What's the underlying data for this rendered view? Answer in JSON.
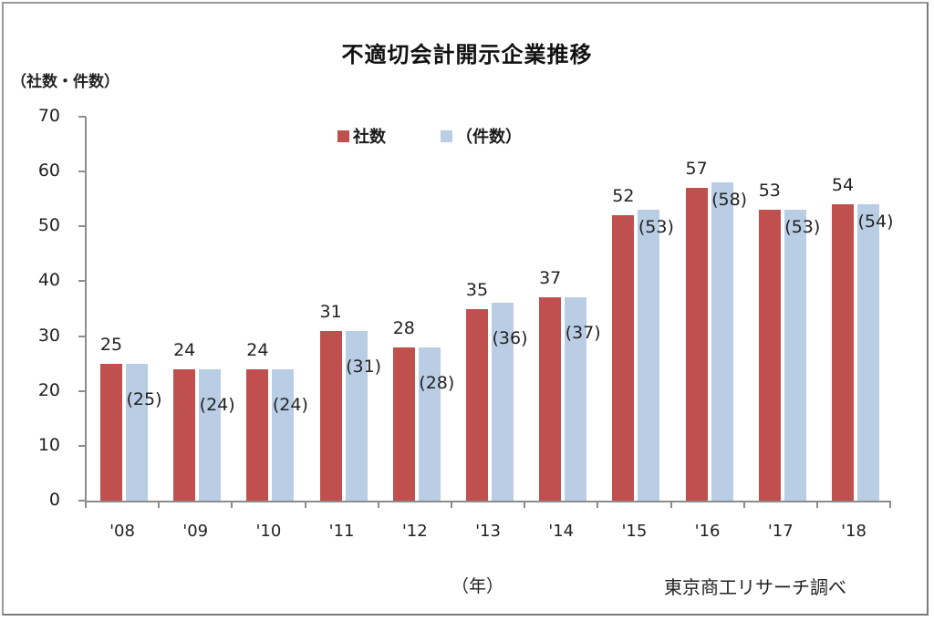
{
  "chart_data": {
    "type": "bar",
    "title": "不適切会計開示企業推移",
    "xlabel": "（年）",
    "ylabel": "（社数・件数）",
    "ylim": [
      0,
      70
    ],
    "yticks": [
      0,
      10,
      20,
      30,
      40,
      50,
      60,
      70
    ],
    "grid": false,
    "legend_position": "top",
    "categories": [
      "'08",
      "'09",
      "'10",
      "'11",
      "'12",
      "'13",
      "'14",
      "'15",
      "'16",
      "'17",
      "'18"
    ],
    "series": [
      {
        "name": "社数",
        "color": "#c0504d",
        "values": [
          25,
          24,
          24,
          31,
          28,
          35,
          37,
          52,
          57,
          53,
          54
        ],
        "labels": [
          "25",
          "24",
          "24",
          "31",
          "28",
          "35",
          "37",
          "52",
          "57",
          "53",
          "54"
        ]
      },
      {
        "name": "（件数）",
        "color": "#b9cde5",
        "values": [
          25,
          24,
          24,
          31,
          28,
          36,
          37,
          53,
          58,
          53,
          54
        ],
        "labels": [
          "(25)",
          "(24)",
          "(24)",
          "(31)",
          "(28)",
          "(36)",
          "(37)",
          "(53)",
          "(58)",
          "(53)",
          "(54)"
        ]
      }
    ],
    "source": "東京商工リサーチ調べ"
  }
}
